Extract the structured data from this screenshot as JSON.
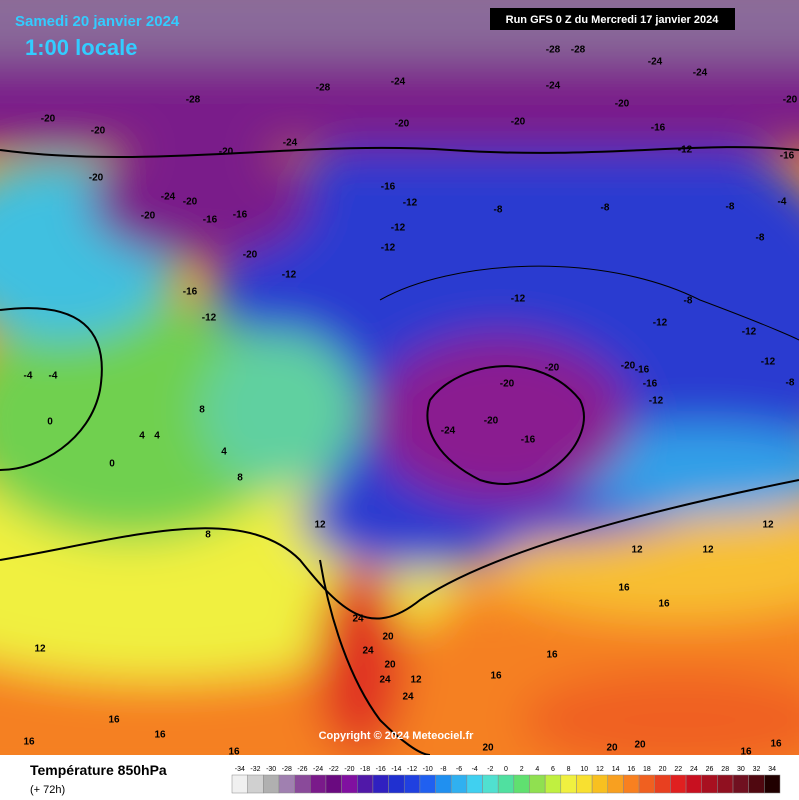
{
  "header": {
    "date": "Samedi 20 janvier 2024",
    "time": "1:00 locale",
    "run": "Run GFS 0 Z du Mercredi 17 janvier 2024"
  },
  "copyright": "Copyright © 2024 Meteociel.fr",
  "map_labels": [
    "-28",
    "-28",
    "-24",
    "-24",
    "-24",
    "-28",
    "-28",
    "-24",
    "-20",
    "-20",
    "-20",
    "-20",
    "-20",
    "-20",
    "-24",
    "-20",
    "-16",
    "-12",
    "-16",
    "-20",
    "-24",
    "-20",
    "-16",
    "-12",
    "-8",
    "-8",
    "-8",
    "-4",
    "-16",
    "-16",
    "-20",
    "-12",
    "-12",
    "-20",
    "-8",
    "-12",
    "-12",
    "-8",
    "-16",
    "-12",
    "-12",
    "-12",
    "-12",
    "-20",
    "-16",
    "-20",
    "-16",
    "-20",
    "-12",
    "-24",
    "-20",
    "-16",
    "-4",
    "-4",
    "0",
    "4",
    "4",
    "0",
    "8",
    "4",
    "8",
    "12",
    "8",
    "12",
    "16",
    "16",
    "16",
    "16",
    "24",
    "24",
    "20",
    "20",
    "24",
    "24",
    "12",
    "16",
    "16",
    "16",
    "16",
    "12",
    "12",
    "12",
    "20",
    "20",
    "20",
    "16",
    "16",
    "-8"
  ],
  "legend": {
    "title": "Température 850hPa",
    "subtitle": "(+ 72h)",
    "ticks": [
      -34,
      -32,
      -30,
      -28,
      -26,
      -24,
      -22,
      -20,
      -18,
      -16,
      -14,
      -12,
      -10,
      -8,
      -6,
      -4,
      -2,
      0,
      2,
      4,
      6,
      8,
      10,
      12,
      14,
      16,
      18,
      20,
      22,
      24,
      26,
      28,
      30,
      32,
      34
    ],
    "colors": [
      "#f0f0f0",
      "#d0d0d0",
      "#b0b0b0",
      "#a080b0",
      "#8a4a9a",
      "#7a1a8a",
      "#6a0a80",
      "#8010a0",
      "#5018a8",
      "#3020c0",
      "#2030d0",
      "#2040e0",
      "#2060f0",
      "#2090f0",
      "#30b0f0",
      "#40d0f0",
      "#50e0d0",
      "#50e0a0",
      "#60e070",
      "#90e050",
      "#c0f040",
      "#f0f040",
      "#f8e030",
      "#f8c020",
      "#f8a020",
      "#f88020",
      "#f06020",
      "#e84020",
      "#e02020",
      "#c81020",
      "#a81020",
      "#901020",
      "#701020",
      "#500810",
      "#200000"
    ]
  }
}
